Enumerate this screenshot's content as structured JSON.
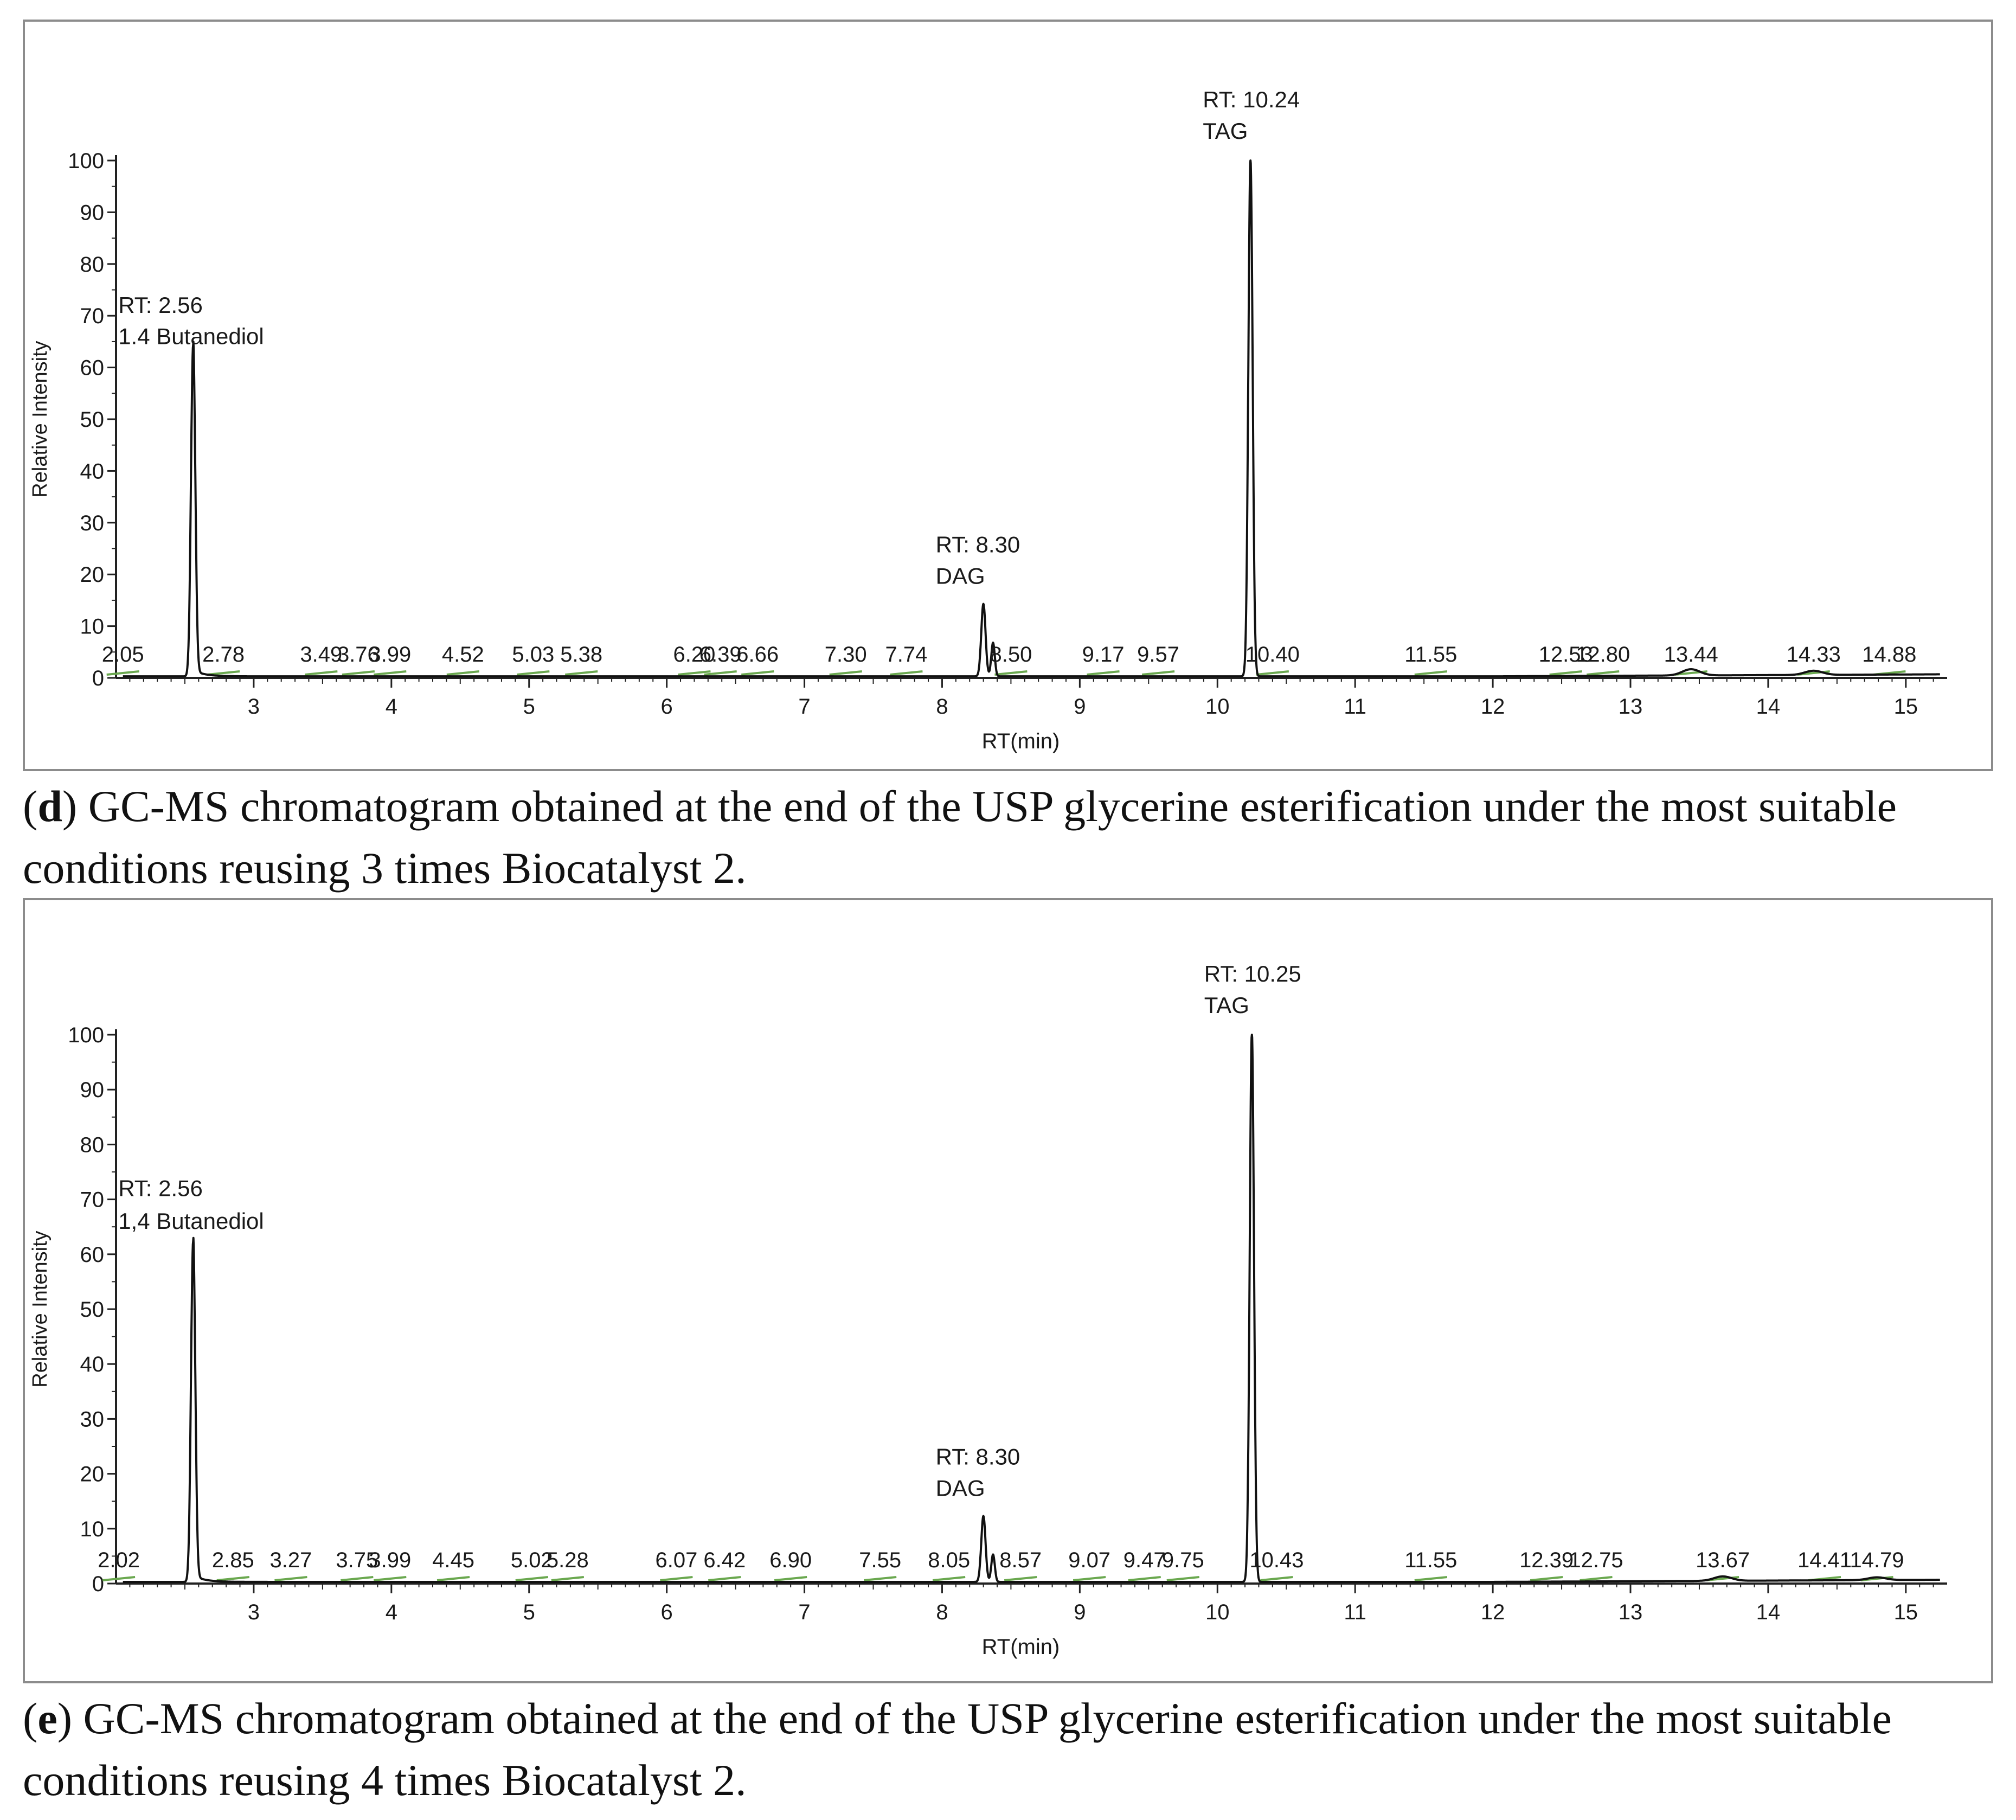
{
  "chart_data": [
    {
      "type": "line",
      "panel": "d",
      "xlabel": "RT(min)",
      "ylabel": "Relative Intensity",
      "xlim": [
        2.0,
        15.3
      ],
      "ylim": [
        0,
        100
      ],
      "xticks": [
        3,
        4,
        5,
        6,
        7,
        8,
        9,
        10,
        11,
        12,
        13,
        14,
        15
      ],
      "yticks": [
        0,
        10,
        20,
        30,
        40,
        50,
        60,
        70,
        80,
        90,
        100
      ],
      "peaks": [
        {
          "rt": 2.56,
          "height": 64,
          "label": "RT: 2.56",
          "name": "1.4 Butanediol"
        },
        {
          "rt": 8.3,
          "height": 14,
          "label": "RT: 8.30",
          "name": "DAG"
        },
        {
          "rt": 10.24,
          "height": 100,
          "label": "RT: 10.24",
          "name": "TAG"
        }
      ],
      "minor_peaks": [
        {
          "rt": 8.37,
          "height": 6.5
        },
        {
          "rt": 13.44,
          "height": 1.2
        },
        {
          "rt": 14.33,
          "height": 0.8
        }
      ],
      "annotations": [
        {
          "x": 2.05,
          "text": "2.05"
        },
        {
          "x": 2.78,
          "text": "2.78"
        },
        {
          "x": 3.49,
          "text": "3.49"
        },
        {
          "x": 3.76,
          "text": "3.76"
        },
        {
          "x": 3.99,
          "text": "3.99"
        },
        {
          "x": 4.52,
          "text": "4.52"
        },
        {
          "x": 5.03,
          "text": "5.03"
        },
        {
          "x": 5.38,
          "text": "5.38"
        },
        {
          "x": 6.2,
          "text": "6.20"
        },
        {
          "x": 6.39,
          "text": "6.39"
        },
        {
          "x": 6.66,
          "text": "6.66"
        },
        {
          "x": 7.3,
          "text": "7.30"
        },
        {
          "x": 7.74,
          "text": "7.74"
        },
        {
          "x": 8.5,
          "text": "8.50"
        },
        {
          "x": 9.17,
          "text": "9.17"
        },
        {
          "x": 9.57,
          "text": "9.57"
        },
        {
          "x": 10.4,
          "text": "10.40"
        },
        {
          "x": 11.55,
          "text": "11.55"
        },
        {
          "x": 12.53,
          "text": "12.53"
        },
        {
          "x": 12.8,
          "text": "12.80"
        },
        {
          "x": 13.44,
          "text": "13.44"
        },
        {
          "x": 14.33,
          "text": "14.33"
        },
        {
          "x": 14.88,
          "text": "14.88"
        }
      ]
    },
    {
      "type": "line",
      "panel": "e",
      "xlabel": "RT(min)",
      "ylabel": "Relative Intensity",
      "xlim": [
        2.0,
        15.3
      ],
      "ylim": [
        0,
        100
      ],
      "xticks": [
        3,
        4,
        5,
        6,
        7,
        8,
        9,
        10,
        11,
        12,
        13,
        14,
        15
      ],
      "yticks": [
        0,
        10,
        20,
        30,
        40,
        50,
        60,
        70,
        80,
        90,
        100
      ],
      "peaks": [
        {
          "rt": 2.56,
          "height": 62,
          "label": "RT: 2.56",
          "name": "1,4 Butanediol"
        },
        {
          "rt": 8.3,
          "height": 12,
          "label": "RT: 8.30",
          "name": "DAG"
        },
        {
          "rt": 10.25,
          "height": 100,
          "label": "RT: 10.25",
          "name": "TAG"
        }
      ],
      "minor_peaks": [
        {
          "rt": 8.37,
          "height": 5
        },
        {
          "rt": 13.67,
          "height": 0.8
        },
        {
          "rt": 14.79,
          "height": 0.5
        }
      ],
      "annotations": [
        {
          "x": 2.02,
          "text": "2.02"
        },
        {
          "x": 2.85,
          "text": "2.85"
        },
        {
          "x": 3.27,
          "text": "3.27"
        },
        {
          "x": 3.75,
          "text": "3.75"
        },
        {
          "x": 3.99,
          "text": "3.99"
        },
        {
          "x": 4.45,
          "text": "4.45"
        },
        {
          "x": 5.02,
          "text": "5.02"
        },
        {
          "x": 5.28,
          "text": "5.28"
        },
        {
          "x": 6.07,
          "text": "6.07"
        },
        {
          "x": 6.42,
          "text": "6.42"
        },
        {
          "x": 6.9,
          "text": "6.90"
        },
        {
          "x": 7.55,
          "text": "7.55"
        },
        {
          "x": 8.05,
          "text": "8.05"
        },
        {
          "x": 8.57,
          "text": "8.57"
        },
        {
          "x": 9.07,
          "text": "9.07"
        },
        {
          "x": 9.47,
          "text": "9.47"
        },
        {
          "x": 9.75,
          "text": "9.75"
        },
        {
          "x": 10.43,
          "text": "10.43"
        },
        {
          "x": 11.55,
          "text": "11.55"
        },
        {
          "x": 12.39,
          "text": "12.39"
        },
        {
          "x": 12.75,
          "text": "12.75"
        },
        {
          "x": 13.67,
          "text": "13.67"
        },
        {
          "x": 14.41,
          "text": "14.41"
        },
        {
          "x": 14.79,
          "text": "14.79"
        }
      ]
    }
  ],
  "captions": {
    "d": {
      "letter": "d",
      "text": ") GC-MS chromatogram obtained at the end of the USP glycerine esterification under the most suitable conditions reusing 3 times Biocatalyst 2."
    },
    "e": {
      "letter": "e",
      "text": ") GC-MS chromatogram obtained at the end of the USP glycerine esterification under the most suitable conditions reusing 4 times Biocatalyst 2."
    }
  },
  "colors": {
    "trace": "#111111",
    "axis": "#222222",
    "baseline_marks": "#6aa84f"
  }
}
